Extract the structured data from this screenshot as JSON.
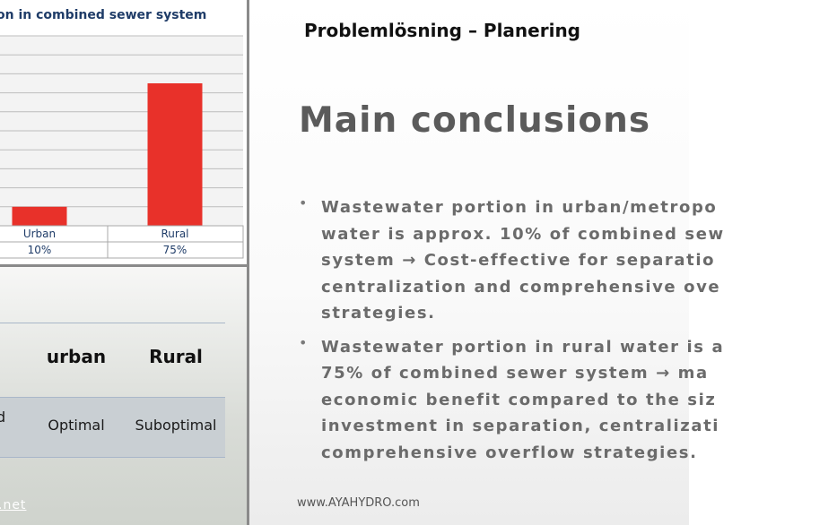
{
  "chart": {
    "title_fragment": "on in combined sewer system"
  },
  "chart_data": {
    "type": "bar",
    "title": "on in combined sewer system",
    "categories": [
      "Urban",
      "Rural"
    ],
    "values": [
      10,
      75
    ],
    "table_values": [
      "10%",
      "75%"
    ],
    "ylim": [
      0,
      100
    ],
    "grid": true,
    "bar_color": "#e8312a"
  },
  "comparison_table": {
    "headers": [
      "urban",
      "Rural"
    ],
    "row_label_fragment": "d",
    "cells": [
      "Optimal",
      "Suboptimal"
    ],
    "footer_fragment": ".net"
  },
  "slide": {
    "header": "Problemlösning – Planering",
    "title": "Main conclusions",
    "bullet_marker": "•",
    "bullets": [
      {
        "lines": [
          "Wastewater portion in urban/metropo",
          "water is approx. 10% of combined sew",
          "system → Cost-effective for separatio",
          "centralization and comprehensive ove",
          "strategies."
        ]
      },
      {
        "lines": [
          "Wastewater portion in rural water is a",
          "75% of combined sewer system → ma",
          "economic benefit compared to the siz",
          "investment in separation, centralizati",
          "comprehensive overflow strategies."
        ]
      }
    ],
    "footer": "www.AYAHYDRO.com"
  }
}
